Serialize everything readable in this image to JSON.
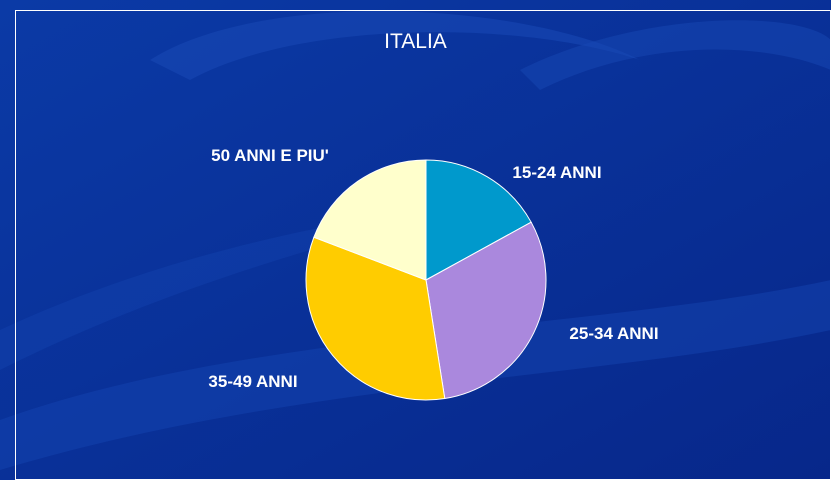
{
  "chart_data": {
    "type": "pie",
    "title": "ITALIA",
    "categories": [
      "15-24 ANNI",
      "25-34 ANNI",
      "35-49 ANNI",
      "50 ANNI E PIU'"
    ],
    "values": [
      17,
      30.5,
      33.3,
      19.2
    ],
    "colors": [
      "#0099cc",
      "#aa88dd",
      "#ffcc00",
      "#ffffcc"
    ]
  }
}
